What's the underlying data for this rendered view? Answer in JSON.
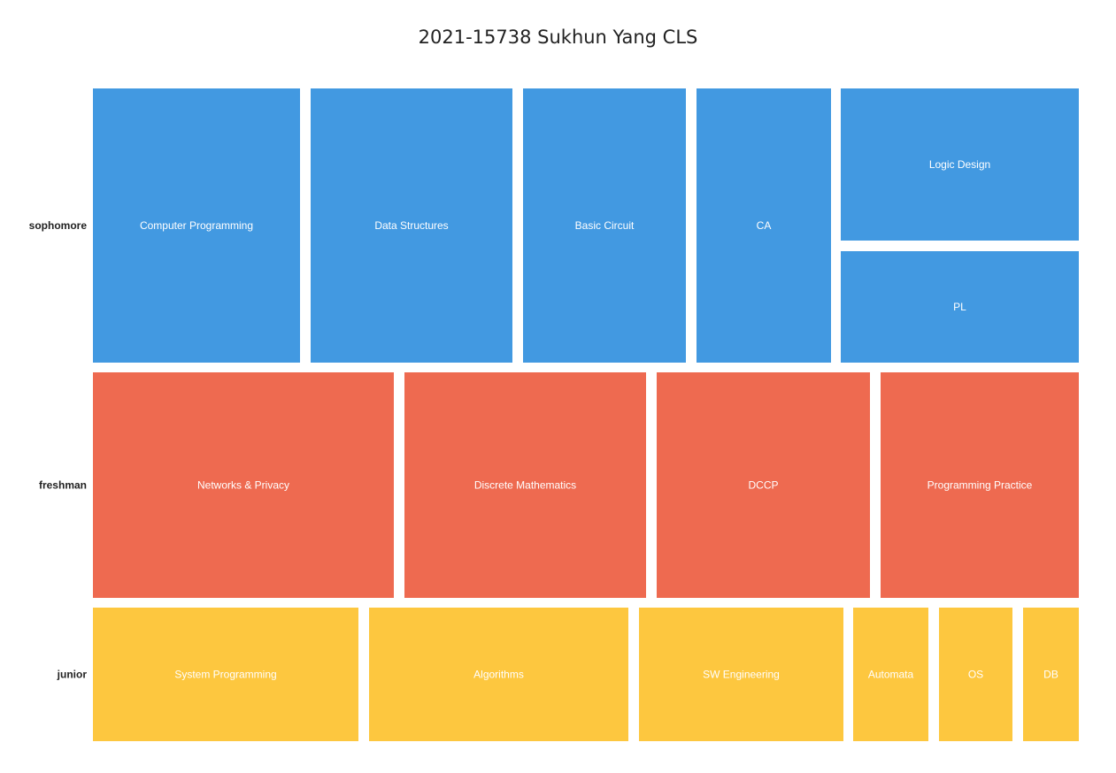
{
  "chart_data": {
    "type": "treemap",
    "title": "2021-15738 Sukhun Yang CLS",
    "groups": [
      {
        "name": "sophomore",
        "color": "#4299e1",
        "items": [
          "Computer Programming",
          "Data Structures",
          "Basic Circuit",
          "CA",
          "Logic Design",
          "PL"
        ]
      },
      {
        "name": "freshman",
        "color": "#ee6a50",
        "items": [
          "Networks & Privacy",
          "Discrete Mathematics",
          "DCCP",
          "Programming Practice"
        ]
      },
      {
        "name": "junior",
        "color": "#fdc73f",
        "items": [
          "System Programming",
          "Algorithms",
          "SW Engineering",
          "Automata",
          "OS",
          "DB"
        ]
      }
    ]
  }
}
